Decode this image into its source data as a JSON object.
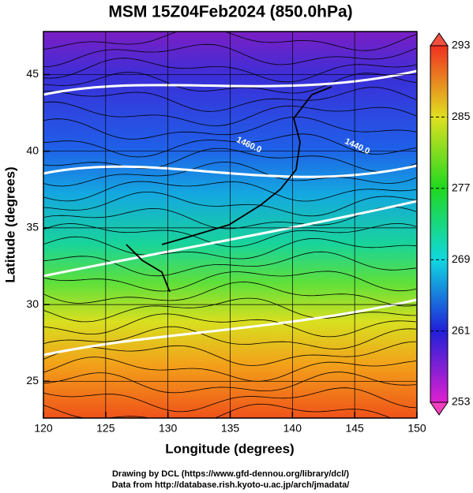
{
  "chart_data": {
    "type": "map",
    "title": "MSM 15Z04Feb2024 (850.0hPa)",
    "x_label": "Longitude (degrees)",
    "y_label": "Latitude  (degrees)",
    "xlim": [
      120,
      150
    ],
    "ylim": [
      22.6,
      47.8
    ],
    "xticks": [
      120,
      125,
      130,
      135,
      140,
      145,
      150
    ],
    "yticks": [
      25,
      30,
      35,
      40,
      45
    ],
    "grid": true,
    "colorbar": {
      "lim": [
        253,
        293
      ],
      "ticks": [
        253,
        261,
        269,
        277,
        285,
        293
      ]
    },
    "contour_labels": [
      {
        "text": "1460.0",
        "lon": 136.5,
        "lat": 40.4
      },
      {
        "text": "1440.0",
        "lon": 145.2,
        "lat": 40.3
      }
    ],
    "footer": [
      "Drawing by DCL (https://www.gfd-dennou.org/library/dcl/)",
      "Data from http://database.rish.kyoto-u.ac.jp/arch/jmadata/"
    ]
  }
}
